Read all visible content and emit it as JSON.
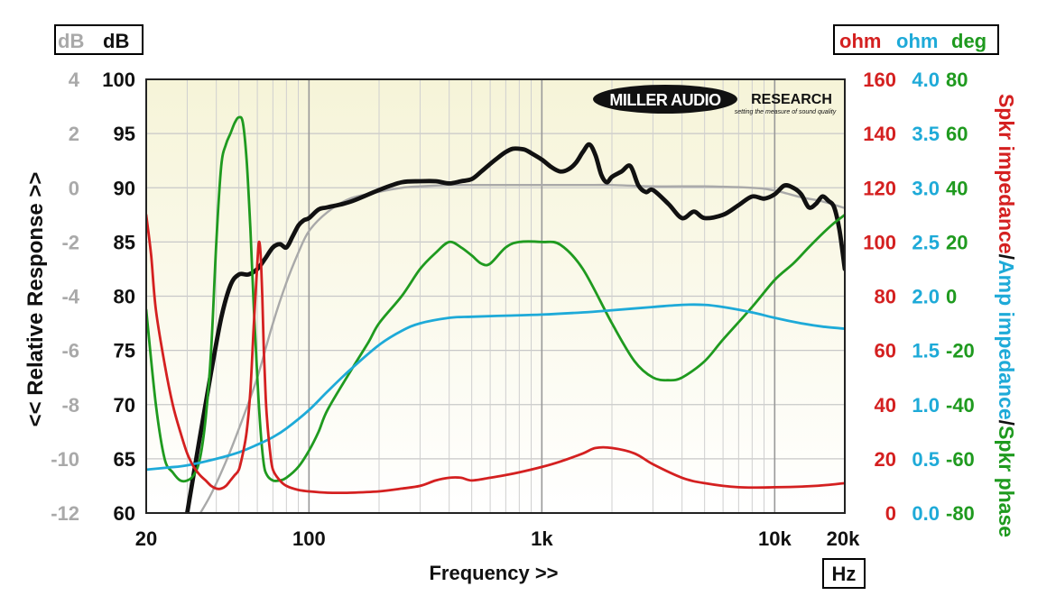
{
  "chart_data": {
    "type": "line",
    "xlabel": "Frequency >>",
    "x_unit": "Hz",
    "x_scale": "log",
    "xlim": [
      20,
      20000
    ],
    "x_ticks": [
      {
        "value": 20,
        "label": "20"
      },
      {
        "value": 100,
        "label": "100"
      },
      {
        "value": 1000,
        "label": "1k"
      },
      {
        "value": 10000,
        "label": "10k"
      },
      {
        "value": 20000,
        "label": "20k"
      }
    ],
    "grid": true,
    "brand": "MILLER AUDIO RESEARCH",
    "brand_tagline": "setting the measure of sound quality",
    "left_axes": {
      "ylabel": "<< Relative Response >>",
      "relative_db": {
        "unit": "dB",
        "color": "#a9a9a9",
        "ticks": [
          "4",
          "2",
          "0",
          "-2",
          "-4",
          "-6",
          "-8",
          "-10",
          "-12"
        ]
      },
      "absolute_db": {
        "unit": "dB",
        "color": "#111111",
        "ticks": [
          "100",
          "95",
          "90",
          "85",
          "80",
          "75",
          "70",
          "65",
          "60"
        ]
      }
    },
    "right_axes": {
      "ylabel_parts": [
        {
          "text": "Spkr impedance",
          "color": "#d42020"
        },
        {
          "text": "/",
          "color": "#111111"
        },
        {
          "text": "Amp impedance",
          "color": "#1eaad8"
        },
        {
          "text": "/",
          "color": "#111111"
        },
        {
          "text": "Spkr phase",
          "color": "#1f9a1f"
        }
      ],
      "spkr_ohm": {
        "unit": "ohm",
        "color": "#d42020",
        "ticks": [
          "160",
          "140",
          "120",
          "100",
          "80",
          "60",
          "40",
          "20",
          "0"
        ]
      },
      "amp_ohm": {
        "unit": "ohm",
        "color": "#1eaad8",
        "ticks": [
          "4.0",
          "3.5",
          "3.0",
          "2.5",
          "2.0",
          "1.5",
          "1.0",
          "0.5",
          "0.0"
        ]
      },
      "phase_deg": {
        "unit": "deg",
        "color": "#1f9a1f",
        "ticks": [
          "80",
          "60",
          "40",
          "20",
          "0",
          "-20",
          "-40",
          "-60",
          "-80"
        ]
      }
    },
    "series": [
      {
        "axis": "relative_db",
        "color": "#a9a9a9",
        "x": [
          32,
          38,
          45,
          52,
          60,
          70,
          80,
          90,
          100,
          120,
          150,
          200,
          250,
          300,
          400,
          500,
          700,
          1000,
          1500,
          2000,
          3000,
          5000,
          8000,
          10000,
          13000,
          16000,
          20000
        ],
        "y": [
          -12.4,
          -11.3,
          -9.9,
          -8.5,
          -7.0,
          -5.0,
          -3.5,
          -2.4,
          -1.6,
          -0.9,
          -0.4,
          -0.15,
          0,
          0.05,
          0.1,
          0.1,
          0.1,
          0.1,
          0.1,
          0.1,
          0.05,
          0.05,
          0,
          -0.1,
          -0.35,
          -0.5,
          -0.75
        ]
      },
      {
        "axis": "absolute_db",
        "color": "#111111",
        "x": [
          30,
          34,
          38,
          42,
          46,
          50,
          55,
          60,
          65,
          70,
          75,
          80,
          85,
          90,
          95,
          100,
          110,
          120,
          150,
          200,
          250,
          300,
          350,
          400,
          450,
          500,
          550,
          600,
          650,
          700,
          750,
          800,
          850,
          900,
          1000,
          1100,
          1200,
          1300,
          1400,
          1500,
          1600,
          1700,
          1800,
          1900,
          2000,
          2200,
          2400,
          2600,
          2800,
          3000,
          3500,
          4000,
          4500,
          5000,
          6000,
          7000,
          8000,
          9000,
          10000,
          11000,
          12000,
          13000,
          14000,
          15000,
          16000,
          17000,
          18000,
          19000,
          20000
        ],
        "y": [
          60,
          67,
          73,
          78,
          81,
          82,
          82,
          82.5,
          83.5,
          84.5,
          84.8,
          84.5,
          85.5,
          86.5,
          87,
          87.2,
          88,
          88.2,
          88.7,
          89.8,
          90.5,
          90.6,
          90.6,
          90.4,
          90.6,
          90.8,
          91.5,
          92.2,
          92.8,
          93.3,
          93.6,
          93.6,
          93.5,
          93.2,
          92.6,
          91.9,
          91.5,
          91.7,
          92.3,
          93.3,
          94.0,
          93.0,
          91.2,
          90.5,
          91.0,
          91.5,
          92.0,
          90.2,
          89.6,
          89.8,
          88.5,
          87.2,
          87.8,
          87.2,
          87.5,
          88.4,
          89.2,
          89.0,
          89.4,
          90.2,
          90.0,
          89.4,
          88.2,
          88.5,
          89.2,
          88.8,
          88.2,
          86.0,
          82.5
        ]
      },
      {
        "axis": "phase_deg",
        "color": "#1f9a1f",
        "x": [
          20,
          22,
          24,
          26,
          28,
          30,
          32,
          34,
          36,
          38,
          40,
          42,
          44,
          46,
          48,
          50,
          52,
          54,
          56,
          58,
          60,
          62,
          64,
          66,
          70,
          75,
          80,
          90,
          100,
          110,
          120,
          150,
          180,
          200,
          250,
          300,
          350,
          400,
          450,
          500,
          550,
          600,
          700,
          800,
          1000,
          1200,
          1500,
          2000,
          2500,
          3000,
          3500,
          4000,
          5000,
          6000,
          8000,
          10000,
          12000,
          14000,
          16000,
          18000,
          20000
        ],
        "y": [
          -5,
          -40,
          -60,
          -65,
          -68,
          -68,
          -66,
          -60,
          -45,
          -20,
          20,
          48,
          56,
          60,
          64,
          66,
          64,
          50,
          25,
          -5,
          -30,
          -50,
          -62,
          -66,
          -68,
          -68,
          -67,
          -63,
          -57,
          -50,
          -42,
          -28,
          -17,
          -10,
          0,
          10,
          16,
          20,
          18,
          15,
          12,
          12,
          18,
          20,
          20,
          19,
          10,
          -10,
          -24,
          -30,
          -31,
          -30,
          -24,
          -16,
          -4,
          6,
          12,
          18,
          23,
          27,
          30
        ]
      },
      {
        "axis": "amp_ohm",
        "color": "#1eaad8",
        "x": [
          20,
          25,
          30,
          40,
          50,
          60,
          70,
          80,
          100,
          120,
          150,
          200,
          250,
          300,
          400,
          500,
          700,
          1000,
          1500,
          2000,
          3000,
          4000,
          5000,
          6000,
          8000,
          10000,
          13000,
          16000,
          20000
        ],
        "y": [
          0.4,
          0.42,
          0.44,
          0.5,
          0.56,
          0.63,
          0.7,
          0.78,
          0.95,
          1.12,
          1.32,
          1.55,
          1.68,
          1.75,
          1.8,
          1.81,
          1.82,
          1.83,
          1.85,
          1.87,
          1.9,
          1.92,
          1.92,
          1.9,
          1.85,
          1.8,
          1.75,
          1.72,
          1.7
        ]
      },
      {
        "axis": "spkr_ohm",
        "color": "#d42020",
        "x": [
          20,
          21,
          22,
          24,
          26,
          28,
          30,
          32,
          34,
          36,
          38,
          40,
          42,
          44,
          46,
          48,
          50,
          52,
          54,
          56,
          58,
          60,
          61,
          62,
          63,
          64,
          65,
          66,
          68,
          70,
          75,
          80,
          90,
          100,
          120,
          150,
          200,
          250,
          300,
          350,
          400,
          450,
          500,
          600,
          700,
          800,
          1000,
          1200,
          1500,
          1700,
          2000,
          2500,
          3000,
          4000,
          5000,
          7000,
          10000,
          15000,
          20000
        ],
        "y": [
          110,
          95,
          75,
          55,
          40,
          30,
          22,
          17,
          14,
          12,
          10,
          9,
          9,
          10,
          12,
          14,
          16,
          22,
          30,
          45,
          70,
          92,
          100,
          95,
          80,
          60,
          45,
          35,
          23,
          16,
          12,
          10,
          8.5,
          8,
          7.5,
          7.5,
          8,
          9,
          10,
          12,
          13,
          13,
          12,
          13,
          14,
          15,
          17,
          19,
          22,
          24,
          24,
          22,
          18,
          13,
          11,
          9.5,
          9.5,
          10,
          11
        ]
      }
    ]
  }
}
